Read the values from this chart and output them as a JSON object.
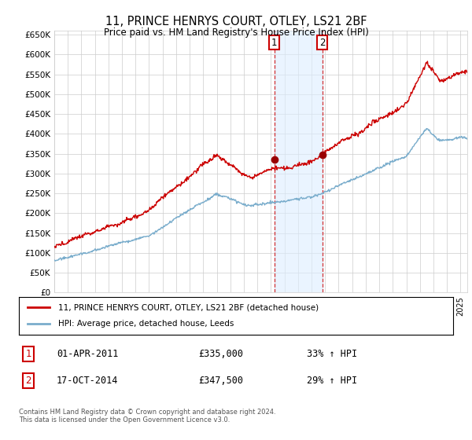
{
  "title": "11, PRINCE HENRYS COURT, OTLEY, LS21 2BF",
  "subtitle": "Price paid vs. HM Land Registry's House Price Index (HPI)",
  "background_color": "#ffffff",
  "plot_bg_color": "#ffffff",
  "grid_color": "#cccccc",
  "ylim": [
    0,
    660000
  ],
  "yticks": [
    0,
    50000,
    100000,
    150000,
    200000,
    250000,
    300000,
    350000,
    400000,
    450000,
    500000,
    550000,
    600000,
    650000
  ],
  "ytick_labels": [
    "£0",
    "£50K",
    "£100K",
    "£150K",
    "£200K",
    "£250K",
    "£300K",
    "£350K",
    "£400K",
    "£450K",
    "£500K",
    "£550K",
    "£600K",
    "£650K"
  ],
  "xlim_start": 1995.0,
  "xlim_end": 2025.5,
  "sale1_x": 2011.25,
  "sale1_y": 335000,
  "sale2_x": 2014.79,
  "sale2_y": 347500,
  "sale1_date": "01-APR-2011",
  "sale1_price": "£335,000",
  "sale1_hpi": "33% ↑ HPI",
  "sale2_date": "17-OCT-2014",
  "sale2_price": "£347,500",
  "sale2_hpi": "29% ↑ HPI",
  "line1_color": "#cc0000",
  "line2_color": "#7aadcc",
  "marker_color": "#990000",
  "legend1_label": "11, PRINCE HENRYS COURT, OTLEY, LS21 2BF (detached house)",
  "legend2_label": "HPI: Average price, detached house, Leeds",
  "footnote": "Contains HM Land Registry data © Crown copyright and database right 2024.\nThis data is licensed under the Open Government Licence v3.0.",
  "sale_box_color": "#cc0000",
  "shade_color": "#ddeeff"
}
